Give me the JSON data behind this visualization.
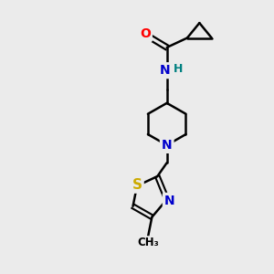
{
  "bg_color": "#ebebeb",
  "atom_colors": {
    "C": "#000000",
    "N": "#0000cc",
    "O": "#ff0000",
    "S": "#ccaa00",
    "H": "#008080"
  },
  "bond_color": "#000000",
  "bond_width": 1.8,
  "figsize": [
    3.0,
    3.0
  ],
  "dpi": 100,
  "xlim": [
    0,
    10
  ],
  "ylim": [
    0,
    10
  ]
}
